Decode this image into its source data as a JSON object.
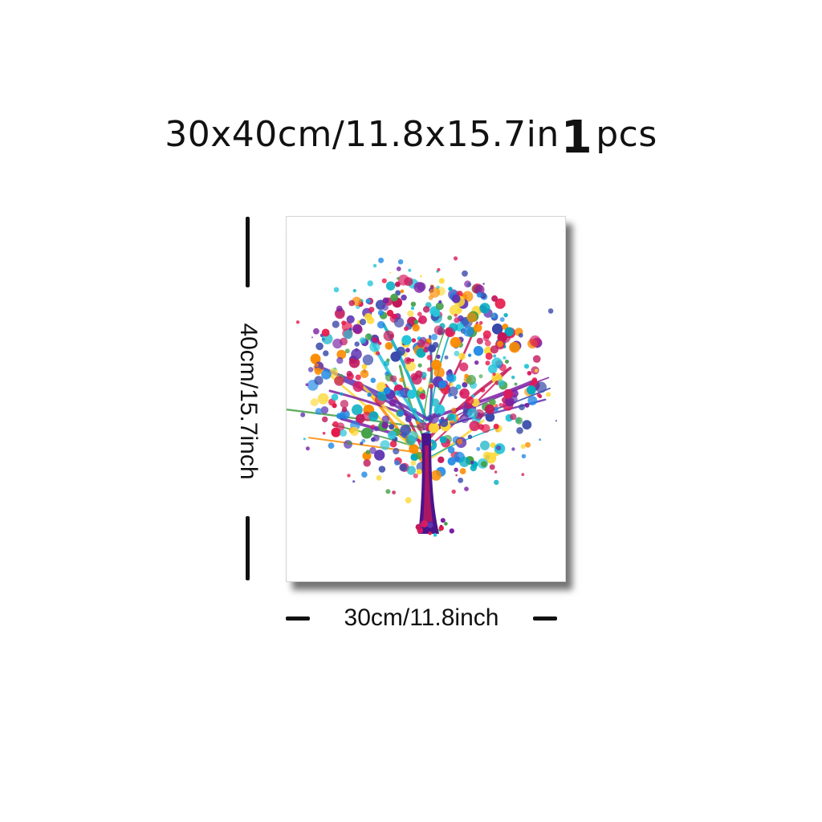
{
  "header": {
    "size_text": "30x40cm/11.8x15.7in",
    "quantity": "1",
    "unit": "pcs"
  },
  "dimensions": {
    "height_label": "40cm/15.7inch",
    "width_label": "30cm/11.8inch"
  },
  "artwork": {
    "subject": "watercolor-tree-icon",
    "palette": [
      "#e6194b",
      "#c2185b",
      "#7b1fa2",
      "#3949ab",
      "#1e88e5",
      "#00acc1",
      "#43a047",
      "#fdd835",
      "#fb8c00",
      "#d81b60",
      "#5e35b1",
      "#26c6da"
    ]
  }
}
